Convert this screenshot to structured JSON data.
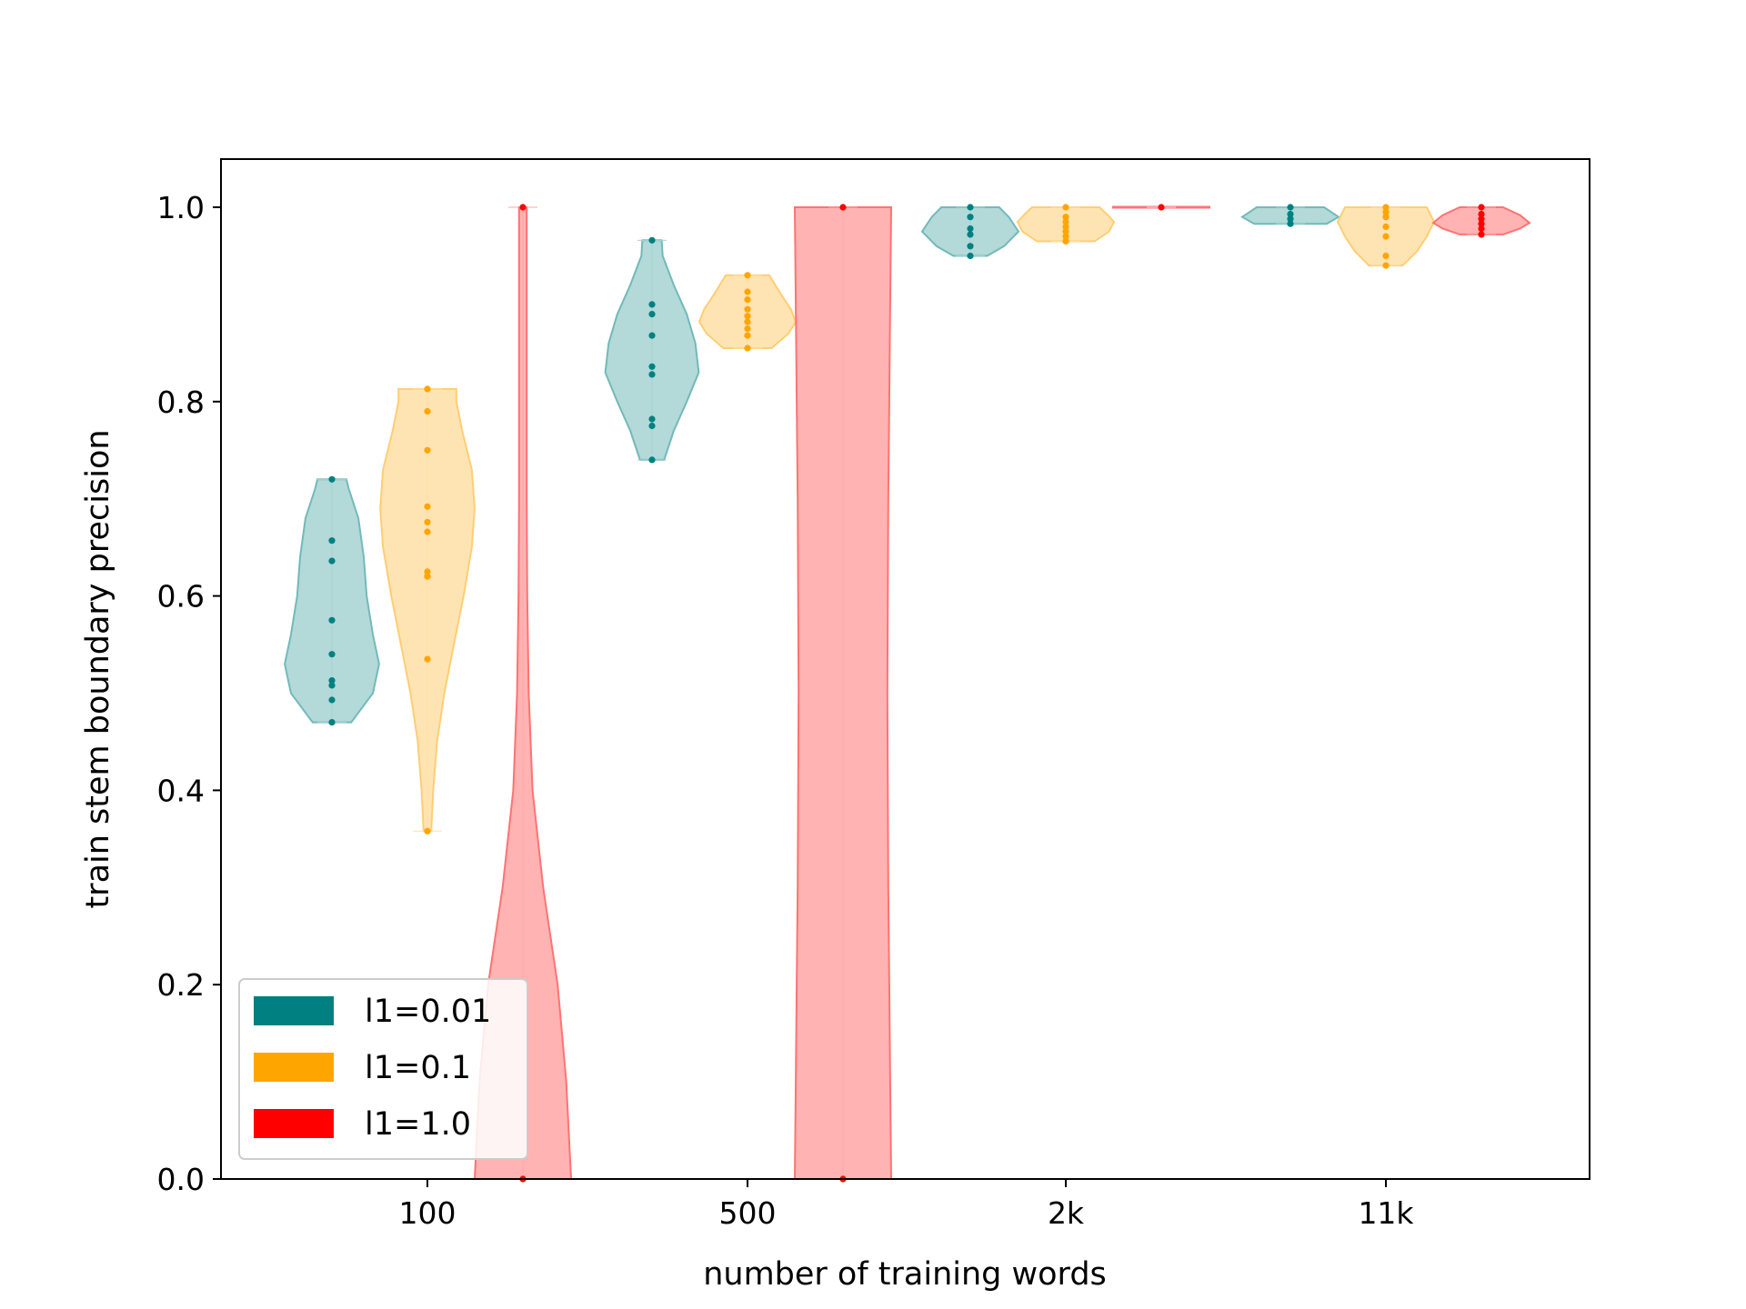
{
  "chart_data": {
    "type": "violin",
    "title": "",
    "xlabel": "number of training words",
    "ylabel": "train stem boundary precision",
    "categories": [
      "100",
      "500",
      "2k",
      "11k"
    ],
    "ylim": [
      0,
      1.05
    ],
    "yticks": [
      0.0,
      0.2,
      0.4,
      0.6,
      0.8,
      1.0
    ],
    "ytick_labels": [
      "0.0",
      "0.2",
      "0.4",
      "0.6",
      "0.8",
      "1.0"
    ],
    "grid": false,
    "legend": {
      "placement": "lower-left",
      "entries": [
        "l1=0.01",
        "l1=0.1",
        "l1=1.0"
      ]
    },
    "series": [
      {
        "name": "l1=0.01",
        "color": "#008080",
        "violins": [
          {
            "category": "100",
            "points": [
              0.47,
              0.493,
              0.508,
              0.513,
              0.54,
              0.575,
              0.636,
              0.657,
              0.72
            ],
            "profile": [
              [
                0.47,
                0.4
              ],
              [
                0.5,
                0.85
              ],
              [
                0.53,
                0.98
              ],
              [
                0.56,
                0.85
              ],
              [
                0.6,
                0.72
              ],
              [
                0.64,
                0.66
              ],
              [
                0.68,
                0.55
              ],
              [
                0.71,
                0.35
              ],
              [
                0.72,
                0.3
              ]
            ]
          },
          {
            "category": "500",
            "points": [
              0.74,
              0.775,
              0.782,
              0.828,
              0.836,
              0.868,
              0.89,
              0.9,
              0.966
            ],
            "profile": [
              [
                0.74,
                0.25
              ],
              [
                0.77,
                0.45
              ],
              [
                0.8,
                0.72
              ],
              [
                0.83,
                0.97
              ],
              [
                0.86,
                0.9
              ],
              [
                0.89,
                0.72
              ],
              [
                0.92,
                0.45
              ],
              [
                0.95,
                0.22
              ],
              [
                0.966,
                0.2
              ]
            ]
          },
          {
            "category": "2k",
            "points": [
              0.95,
              0.96,
              0.972,
              0.978,
              0.99,
              1.0
            ],
            "profile": [
              [
                0.95,
                0.35
              ],
              [
                0.96,
                0.7
              ],
              [
                0.975,
                1.0
              ],
              [
                0.99,
                0.8
              ],
              [
                1.0,
                0.6
              ]
            ]
          },
          {
            "category": "11k",
            "points": [
              0.983,
              0.988,
              0.993,
              1.0
            ],
            "profile": [
              [
                0.983,
                0.75
              ],
              [
                0.99,
                1.0
              ],
              [
                1.0,
                0.7
              ]
            ]
          }
        ]
      },
      {
        "name": "l1=0.1",
        "color": "#FFA500",
        "violins": [
          {
            "category": "100",
            "points": [
              0.358,
              0.535,
              0.62,
              0.625,
              0.666,
              0.676,
              0.692,
              0.75,
              0.79,
              0.813
            ],
            "profile": [
              [
                0.358,
                0.08
              ],
              [
                0.4,
                0.12
              ],
              [
                0.45,
                0.2
              ],
              [
                0.5,
                0.35
              ],
              [
                0.55,
                0.55
              ],
              [
                0.6,
                0.75
              ],
              [
                0.65,
                0.92
              ],
              [
                0.69,
                0.98
              ],
              [
                0.73,
                0.92
              ],
              [
                0.77,
                0.72
              ],
              [
                0.8,
                0.6
              ],
              [
                0.813,
                0.6
              ]
            ]
          },
          {
            "category": "500",
            "points": [
              0.855,
              0.868,
              0.875,
              0.882,
              0.888,
              0.895,
              0.905,
              0.913,
              0.93
            ],
            "profile": [
              [
                0.855,
                0.5
              ],
              [
                0.87,
                0.85
              ],
              [
                0.882,
                1.0
              ],
              [
                0.895,
                0.9
              ],
              [
                0.91,
                0.7
              ],
              [
                0.93,
                0.45
              ]
            ]
          },
          {
            "category": "2k",
            "points": [
              0.965,
              0.97,
              0.975,
              0.98,
              0.985,
              0.99,
              1.0
            ],
            "profile": [
              [
                0.965,
                0.6
              ],
              [
                0.975,
                0.9
              ],
              [
                0.985,
                1.0
              ],
              [
                0.993,
                0.85
              ],
              [
                1.0,
                0.7
              ]
            ]
          },
          {
            "category": "11k",
            "points": [
              0.94,
              0.95,
              0.97,
              0.98,
              0.99,
              0.995,
              1.0
            ],
            "profile": [
              [
                0.94,
                0.35
              ],
              [
                0.955,
                0.65
              ],
              [
                0.97,
                0.85
              ],
              [
                0.985,
                1.0
              ],
              [
                1.0,
                0.85
              ]
            ]
          }
        ]
      },
      {
        "name": "l1=1.0",
        "color": "#FF0000",
        "violins": [
          {
            "category": "100",
            "points": [
              0.0,
              1.0
            ],
            "profile": [
              [
                0.0,
                1.0
              ],
              [
                0.1,
                0.9
              ],
              [
                0.2,
                0.72
              ],
              [
                0.3,
                0.42
              ],
              [
                0.4,
                0.2
              ],
              [
                0.5,
                0.12
              ],
              [
                0.6,
                0.09
              ],
              [
                0.7,
                0.08
              ],
              [
                0.8,
                0.08
              ],
              [
                0.9,
                0.08
              ],
              [
                1.0,
                0.08
              ]
            ]
          },
          {
            "category": "500",
            "points": [
              0.0,
              1.0
            ],
            "profile": [
              [
                0.0,
                1.0
              ],
              [
                0.1,
                0.98
              ],
              [
                0.2,
                0.96
              ],
              [
                0.3,
                0.94
              ],
              [
                0.4,
                0.93
              ],
              [
                0.5,
                0.92
              ],
              [
                0.6,
                0.93
              ],
              [
                0.7,
                0.94
              ],
              [
                0.8,
                0.96
              ],
              [
                0.9,
                0.98
              ],
              [
                1.0,
                1.0
              ]
            ]
          },
          {
            "category": "2k",
            "points": [
              1.0
            ],
            "profile": [
              [
                0.9995,
                1.0
              ],
              [
                1.0005,
                1.0
              ]
            ]
          },
          {
            "category": "11k",
            "points": [
              0.972,
              0.978,
              0.983,
              0.988,
              0.993,
              1.0
            ],
            "profile": [
              [
                0.972,
                0.45
              ],
              [
                0.978,
                0.8
              ],
              [
                0.984,
                1.0
              ],
              [
                0.992,
                0.8
              ],
              [
                1.0,
                0.45
              ]
            ]
          }
        ]
      }
    ]
  }
}
